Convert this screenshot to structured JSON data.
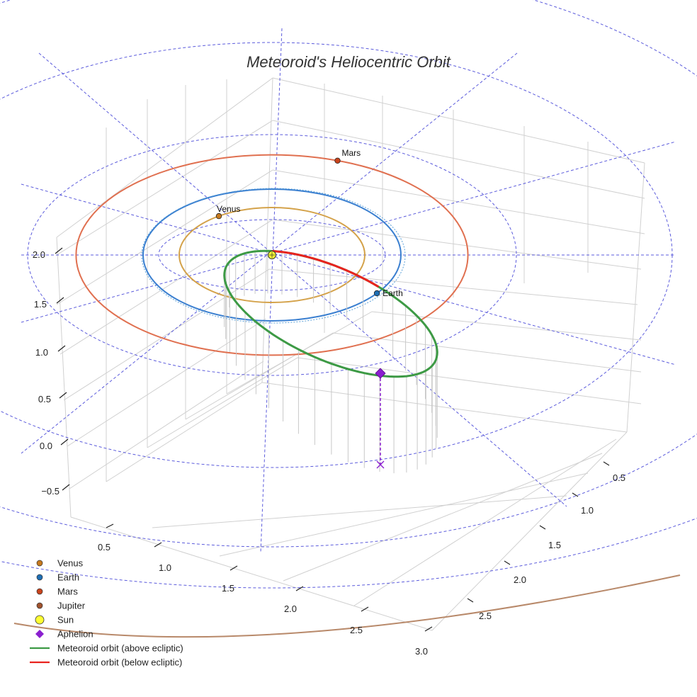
{
  "chart_data": {
    "type": "scatter",
    "title": "Meteoroid's Heliocentric Orbit",
    "axes": {
      "z_ticks": [
        "2.0",
        "1.5",
        "1.0",
        "0.5",
        "0.0",
        "−0.5"
      ],
      "x_ticks": [
        "0.5",
        "1.0",
        "1.5",
        "2.0",
        "2.5",
        "3.0"
      ],
      "y_ticks": [
        "0.5",
        "1.0",
        "1.5",
        "2.0",
        "2.5"
      ]
    },
    "grid": true,
    "planets": [
      {
        "name": "Venus",
        "label": "Venus",
        "orbit_radius_au": 0.72,
        "color": "#d4a24a",
        "marker_color": "#c77a1e"
      },
      {
        "name": "Earth",
        "label": "Earth",
        "orbit_radius_au": 1.0,
        "color": "#3a7fd0",
        "marker_color": "#1f6fb5"
      },
      {
        "name": "Mars",
        "label": "Mars",
        "orbit_radius_au": 1.52,
        "color": "#e07050",
        "marker_color": "#c9441c"
      },
      {
        "name": "Jupiter",
        "label": "",
        "orbit_radius_au": 5.2,
        "color": "#b8896a",
        "marker_color": "#a0522d"
      }
    ],
    "sun": {
      "name": "Sun",
      "color": "#ffff33"
    },
    "aphelion": {
      "name": "Aphelion",
      "color": "#8a1fcf"
    },
    "meteoroid_orbit": {
      "above_label": "Meteoroid orbit (above ecliptic)",
      "below_label": "Meteoroid orbit (below ecliptic)",
      "above_color": "#3d9a45",
      "below_color": "#e8231f"
    },
    "legend": {
      "position": "bottom-left",
      "entries": [
        {
          "label": "Venus",
          "symbol": "dot",
          "color": "#c77a1e"
        },
        {
          "label": "Earth",
          "symbol": "dot",
          "color": "#1f6fb5"
        },
        {
          "label": "Mars",
          "symbol": "dot",
          "color": "#c9441c"
        },
        {
          "label": "Jupiter",
          "symbol": "dot",
          "color": "#a0522d"
        },
        {
          "label": "Sun",
          "symbol": "sun",
          "color": "#ffff33"
        },
        {
          "label": "Aphelion",
          "symbol": "diamond",
          "color": "#8a1fcf"
        },
        {
          "label": "Meteoroid orbit (above ecliptic)",
          "symbol": "line",
          "color": "#3d9a45"
        },
        {
          "label": "Meteoroid orbit (below ecliptic)",
          "symbol": "line",
          "color": "#e8231f"
        }
      ]
    }
  }
}
